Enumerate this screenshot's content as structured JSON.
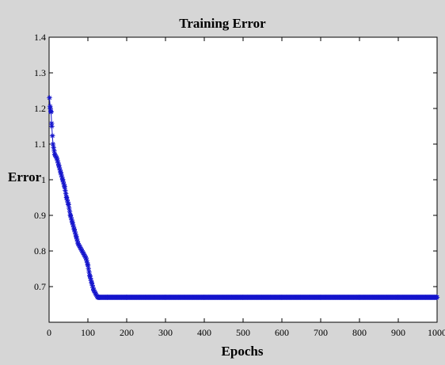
{
  "chart_data": {
    "type": "line",
    "title": "Training Error",
    "xlabel": "Epochs",
    "ylabel": "Error",
    "xlim": [
      0,
      1000
    ],
    "ylim": [
      0.6,
      1.4
    ],
    "xticks": [
      0,
      100,
      200,
      300,
      400,
      500,
      600,
      700,
      800,
      900,
      1000
    ],
    "yticks": [
      0.7,
      0.8,
      0.9,
      1,
      1.1,
      1.2,
      1.3,
      1.4
    ],
    "ytick_labels": [
      "0.7",
      "0.8",
      "0.9",
      "1",
      "1.1",
      "1.2",
      "1.3",
      "1.4"
    ],
    "xtick_labels": [
      "0",
      "100",
      "200",
      "300",
      "400",
      "500",
      "600",
      "700",
      "800",
      "900",
      "1000"
    ],
    "grid": false,
    "marker": "*",
    "series_color": "#1414cc",
    "series": [
      {
        "x": [
          1,
          3,
          5,
          7,
          10,
          15,
          20,
          25,
          30,
          35,
          40,
          45,
          50,
          55,
          60,
          65,
          70,
          75,
          80,
          85,
          90,
          95,
          100,
          105,
          110,
          115,
          120,
          125,
          130,
          150,
          200,
          300,
          400,
          500,
          600,
          700,
          800,
          900,
          1000
        ],
        "values": [
          1.23,
          1.2,
          1.19,
          1.15,
          1.1,
          1.07,
          1.06,
          1.04,
          1.02,
          1.0,
          0.98,
          0.95,
          0.93,
          0.9,
          0.88,
          0.86,
          0.84,
          0.82,
          0.81,
          0.8,
          0.79,
          0.78,
          0.76,
          0.73,
          0.71,
          0.69,
          0.68,
          0.67,
          0.67,
          0.67,
          0.67,
          0.67,
          0.67,
          0.67,
          0.67,
          0.67,
          0.67,
          0.67,
          0.67
        ]
      }
    ]
  }
}
